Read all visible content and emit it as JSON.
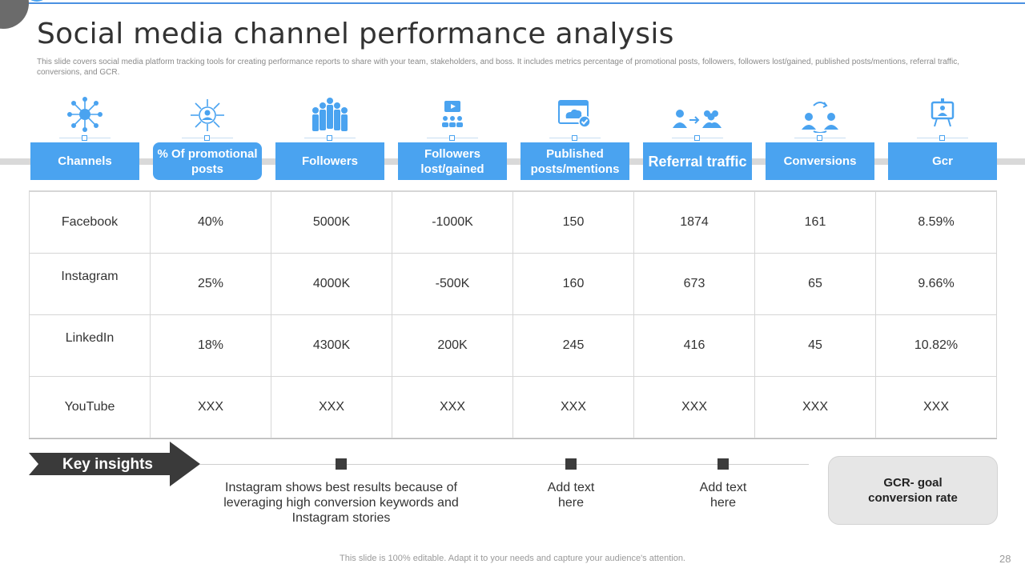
{
  "slide": {
    "title": "Social media channel performance analysis",
    "subtitle": "This slide covers social media platform tracking tools for creating performance reports to share with your team, stakeholders, and boss. It includes metrics percentage of promotional posts, followers, followers lost/gained, published posts/mentions, referral traffic, conversions, and GCR.",
    "footer": "This slide is 100% editable. Adapt it to your needs and capture your audience's attention.",
    "page_number": "28"
  },
  "colors": {
    "accent": "#4aa3f0",
    "dark": "#3c3c3c",
    "grey_band": "#d9d9d9"
  },
  "columns": [
    {
      "label": "Channels",
      "icon": "network-hub-icon"
    },
    {
      "label": "% Of promotional posts",
      "icon": "megaphone-network-icon"
    },
    {
      "label": "Followers",
      "icon": "group-people-icon"
    },
    {
      "label": "Followers lost/gained",
      "icon": "video-audience-icon"
    },
    {
      "label": "Published posts/mentions",
      "icon": "cloud-upload-browser-icon"
    },
    {
      "label": "Referral traffic",
      "icon": "user-referral-arrow-icon"
    },
    {
      "label": "Conversions",
      "icon": "user-conversion-cycle-icon"
    },
    {
      "label": "Gcr",
      "icon": "presentation-screen-icon"
    }
  ],
  "rows": [
    [
      "Facebook",
      "40%",
      "5000K",
      "-1000K",
      "150",
      "1874",
      "161",
      "8.59%"
    ],
    [
      "Instagram",
      "25%",
      "4000K",
      "-500K",
      "160",
      "673",
      "65",
      "9.66%"
    ],
    [
      "LinkedIn",
      "18%",
      "4300K",
      "200K",
      "245",
      "416",
      "45",
      "10.82%"
    ],
    [
      "YouTube",
      "XXX",
      "XXX",
      "XXX",
      "XXX",
      "XXX",
      "XXX",
      "XXX"
    ]
  ],
  "insights": {
    "label": "Key insights",
    "items": [
      "Instagram shows best results because of leveraging high conversion keywords and Instagram stories",
      "Add text here",
      "Add text here"
    ],
    "note": "GCR- goal conversion rate"
  }
}
